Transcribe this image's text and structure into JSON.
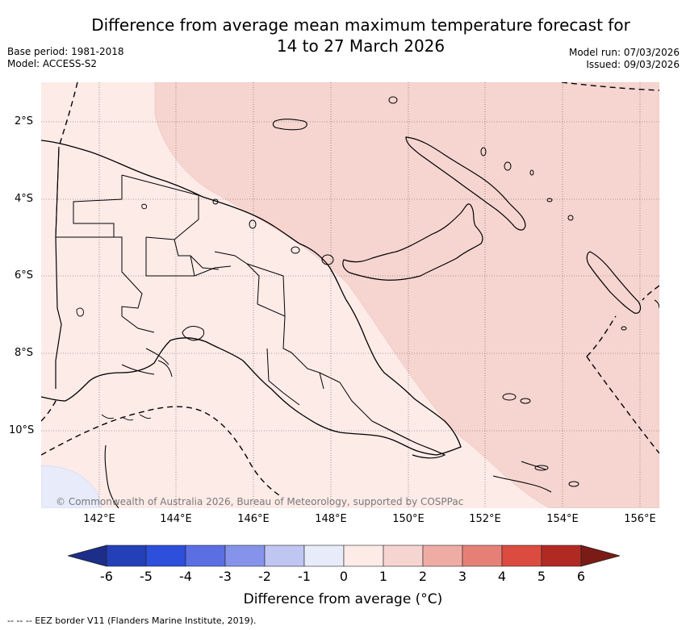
{
  "title_line1": "Difference from average mean maximum temperature forecast for",
  "title_line2": "14 to 27 March 2026",
  "meta_left": [
    "Base period: 1981-2018",
    "Model: ACCESS-S2"
  ],
  "meta_right": [
    "Model run: 07/03/2026",
    "Issued: 09/03/2026"
  ],
  "lat_labels": [
    "2°S",
    "4°S",
    "6°S",
    "8°S",
    "10°S"
  ],
  "lon_labels": [
    "142°E",
    "144°E",
    "146°E",
    "148°E",
    "150°E",
    "152°E",
    "154°E",
    "156°E"
  ],
  "copyright": "© Commonwealth of Australia 2026, Bureau of Meteorology, supported by COSPPac",
  "colorbar": {
    "ticks": [
      "-6",
      "-5",
      "-4",
      "-3",
      "-2",
      "-1",
      "0",
      "1",
      "2",
      "3",
      "4",
      "5",
      "6"
    ],
    "colors": [
      "#1c2d8a",
      "#2340b8",
      "#2e4fdc",
      "#5b6fe3",
      "#8594ea",
      "#c0c6f2",
      "#e8ebfa",
      "#fdebe8",
      "#f6d5d1",
      "#efaca5",
      "#e68077",
      "#db4b3f",
      "#b02a23",
      "#7a1b15"
    ],
    "label": "Difference from average (°C)"
  },
  "legend_footer": "-- -- -- EEZ border V11 (Flanders Marine Institute, 2019)."
}
